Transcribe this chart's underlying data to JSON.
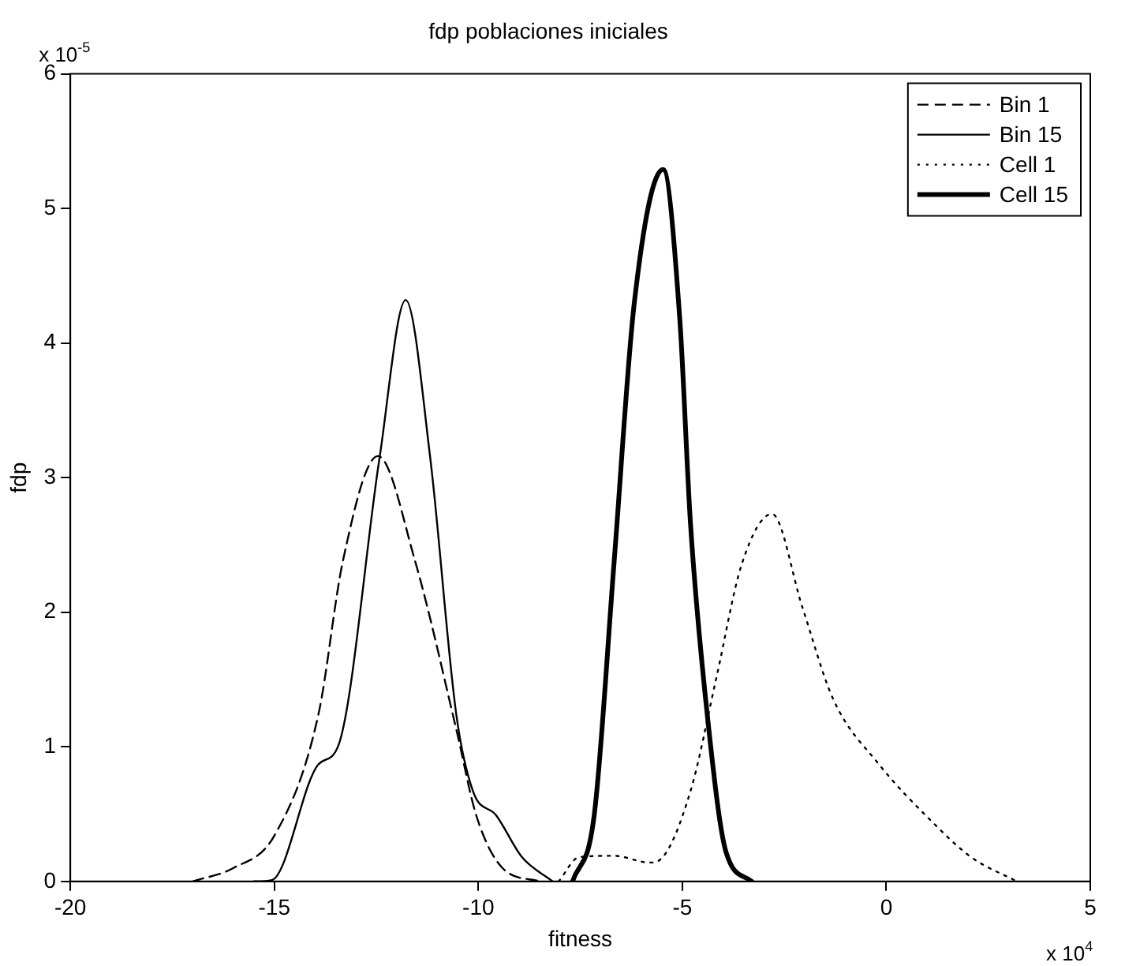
{
  "chart_data": {
    "type": "line",
    "title": "fdp poblaciones iniciales",
    "xlabel": "fitness",
    "ylabel": "fdp",
    "annotations": [
      "x 10$^{-5}$",
      "x 10$^{4}$"
    ],
    "xlim": [
      -20,
      5
    ],
    "xticks": [
      -20,
      -15,
      -10,
      -5,
      0,
      5
    ],
    "ylim": [
      0,
      6
    ],
    "yticks": [
      0,
      1,
      2,
      3,
      4,
      5,
      6
    ],
    "grid": false,
    "legend": "top right",
    "marker": "none",
    "series": [
      {
        "name": "Bin 1",
        "color": "#000000",
        "line_style": "dashed",
        "x": [
          -17,
          -16,
          -15,
          -13.92,
          -13.32,
          -12.46,
          -11.55,
          -10.54,
          -10.05,
          -9.41,
          -8.5
        ],
        "values": [
          0,
          0.1,
          0.34,
          1.24,
          2.38,
          3.16,
          2.38,
          1.13,
          0.49,
          0.1,
          0
        ]
      },
      {
        "name": "Bin 15",
        "color": "#000000",
        "line_style": "solid",
        "x": [
          -15.5,
          -15.06,
          -13.92,
          -13.43,
          -12.42,
          -11.78,
          -11.18,
          -10.54,
          -10.13,
          -9.56,
          -8.93,
          -8.18
        ],
        "values": [
          0,
          0.01,
          0.87,
          1.01,
          3.15,
          4.32,
          3.15,
          1.24,
          0.67,
          0.49,
          0.18,
          0
        ]
      },
      {
        "name": "Cell 1",
        "color": "#000000",
        "line_style": "dotted",
        "x": [
          -8.03,
          -7.53,
          -6.67,
          -5.8,
          -5.55,
          -4.8,
          -4.16,
          -3.55,
          -2.8,
          -2.06,
          -1.31,
          -0.18,
          1.1,
          2.08,
          3.2
        ],
        "values": [
          0,
          0.18,
          0.19,
          0.14,
          0.16,
          0.67,
          1.52,
          2.35,
          2.73,
          2.04,
          1.36,
          0.87,
          0.45,
          0.18,
          0
        ]
      },
      {
        "name": "Cell 15",
        "color": "#000000",
        "line_style": "solid",
        "x": [
          -7.69,
          -7.16,
          -6.67,
          -6.18,
          -5.47,
          -5.06,
          -4.8,
          -4.35,
          -3.93,
          -3.3
        ],
        "values": [
          0,
          0.49,
          2.38,
          4.29,
          5.29,
          4.17,
          2.66,
          1.13,
          0.22,
          0
        ]
      }
    ]
  }
}
